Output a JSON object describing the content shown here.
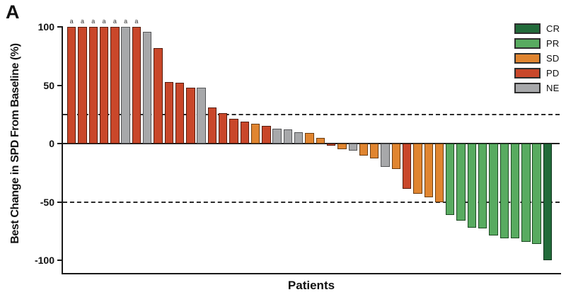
{
  "panel_label": "A",
  "colors": {
    "CR": "#226b3a",
    "PR": "#58ab60",
    "SD": "#e08530",
    "PD": "#c9472a",
    "NE": "#a7a8aa",
    "borders": {
      "CR": "#10341d",
      "PR": "#1c4a22",
      "SD": "#6b3c10",
      "PD": "#551c0e",
      "NE": "#535456"
    },
    "axis": "#1a1a1a"
  },
  "chart_data": {
    "type": "bar",
    "subtype": "waterfall",
    "title": "",
    "xlabel": "Patients",
    "ylabel": "Best Change in SPD From Baseline (%)",
    "ylim": [
      -100,
      100
    ],
    "yticks": [
      100,
      50,
      0,
      -50,
      -100
    ],
    "reference_lines": [
      25,
      -50
    ],
    "grid": false,
    "legend_position": "top-right",
    "legend": [
      {
        "label": "CR",
        "color": "#226b3a"
      },
      {
        "label": "PR",
        "color": "#58ab60"
      },
      {
        "label": "SD",
        "color": "#e08530"
      },
      {
        "label": "PD",
        "color": "#c9472a"
      },
      {
        "label": "NE",
        "color": "#a7a8aa"
      }
    ],
    "footnote_marker": "a",
    "bars": [
      {
        "patient": 1,
        "value": 100,
        "response": "PD",
        "note": "a"
      },
      {
        "patient": 2,
        "value": 100,
        "response": "PD",
        "note": "a"
      },
      {
        "patient": 3,
        "value": 100,
        "response": "PD",
        "note": "a"
      },
      {
        "patient": 4,
        "value": 100,
        "response": "PD",
        "note": "a"
      },
      {
        "patient": 5,
        "value": 100,
        "response": "PD",
        "note": "a"
      },
      {
        "patient": 6,
        "value": 100,
        "response": "NE",
        "note": "a"
      },
      {
        "patient": 7,
        "value": 100,
        "response": "PD",
        "note": "a"
      },
      {
        "patient": 8,
        "value": 96,
        "response": "NE",
        "note": ""
      },
      {
        "patient": 9,
        "value": 82,
        "response": "PD",
        "note": ""
      },
      {
        "patient": 10,
        "value": 53,
        "response": "PD",
        "note": ""
      },
      {
        "patient": 11,
        "value": 52,
        "response": "PD",
        "note": ""
      },
      {
        "patient": 12,
        "value": 48,
        "response": "PD",
        "note": ""
      },
      {
        "patient": 13,
        "value": 48,
        "response": "NE",
        "note": ""
      },
      {
        "patient": 14,
        "value": 31,
        "response": "PD",
        "note": ""
      },
      {
        "patient": 15,
        "value": 26,
        "response": "PD",
        "note": ""
      },
      {
        "patient": 16,
        "value": 21,
        "response": "PD",
        "note": ""
      },
      {
        "patient": 17,
        "value": 19,
        "response": "PD",
        "note": ""
      },
      {
        "patient": 18,
        "value": 17,
        "response": "SD",
        "note": ""
      },
      {
        "patient": 19,
        "value": 15,
        "response": "PD",
        "note": ""
      },
      {
        "patient": 20,
        "value": 13,
        "response": "NE",
        "note": ""
      },
      {
        "patient": 21,
        "value": 12,
        "response": "NE",
        "note": ""
      },
      {
        "patient": 22,
        "value": 10,
        "response": "NE",
        "note": ""
      },
      {
        "patient": 23,
        "value": 9,
        "response": "SD",
        "note": ""
      },
      {
        "patient": 24,
        "value": 5,
        "response": "SD",
        "note": ""
      },
      {
        "patient": 25,
        "value": -2,
        "response": "PD",
        "note": ""
      },
      {
        "patient": 26,
        "value": -5,
        "response": "SD",
        "note": ""
      },
      {
        "patient": 27,
        "value": -6,
        "response": "NE",
        "note": ""
      },
      {
        "patient": 28,
        "value": -10,
        "response": "SD",
        "note": ""
      },
      {
        "patient": 29,
        "value": -13,
        "response": "SD",
        "note": ""
      },
      {
        "patient": 30,
        "value": -20,
        "response": "NE",
        "note": ""
      },
      {
        "patient": 31,
        "value": -22,
        "response": "SD",
        "note": ""
      },
      {
        "patient": 32,
        "value": -39,
        "response": "PD",
        "note": ""
      },
      {
        "patient": 33,
        "value": -43,
        "response": "SD",
        "note": ""
      },
      {
        "patient": 34,
        "value": -46,
        "response": "SD",
        "note": ""
      },
      {
        "patient": 35,
        "value": -50,
        "response": "SD",
        "note": ""
      },
      {
        "patient": 36,
        "value": -61,
        "response": "PR",
        "note": ""
      },
      {
        "patient": 37,
        "value": -66,
        "response": "PR",
        "note": ""
      },
      {
        "patient": 38,
        "value": -72,
        "response": "PR",
        "note": ""
      },
      {
        "patient": 39,
        "value": -73,
        "response": "PR",
        "note": ""
      },
      {
        "patient": 40,
        "value": -79,
        "response": "PR",
        "note": ""
      },
      {
        "patient": 41,
        "value": -81,
        "response": "PR",
        "note": ""
      },
      {
        "patient": 42,
        "value": -81,
        "response": "PR",
        "note": ""
      },
      {
        "patient": 43,
        "value": -84,
        "response": "PR",
        "note": ""
      },
      {
        "patient": 44,
        "value": -86,
        "response": "PR",
        "note": ""
      },
      {
        "patient": 45,
        "value": -100,
        "response": "CR",
        "note": ""
      }
    ]
  }
}
